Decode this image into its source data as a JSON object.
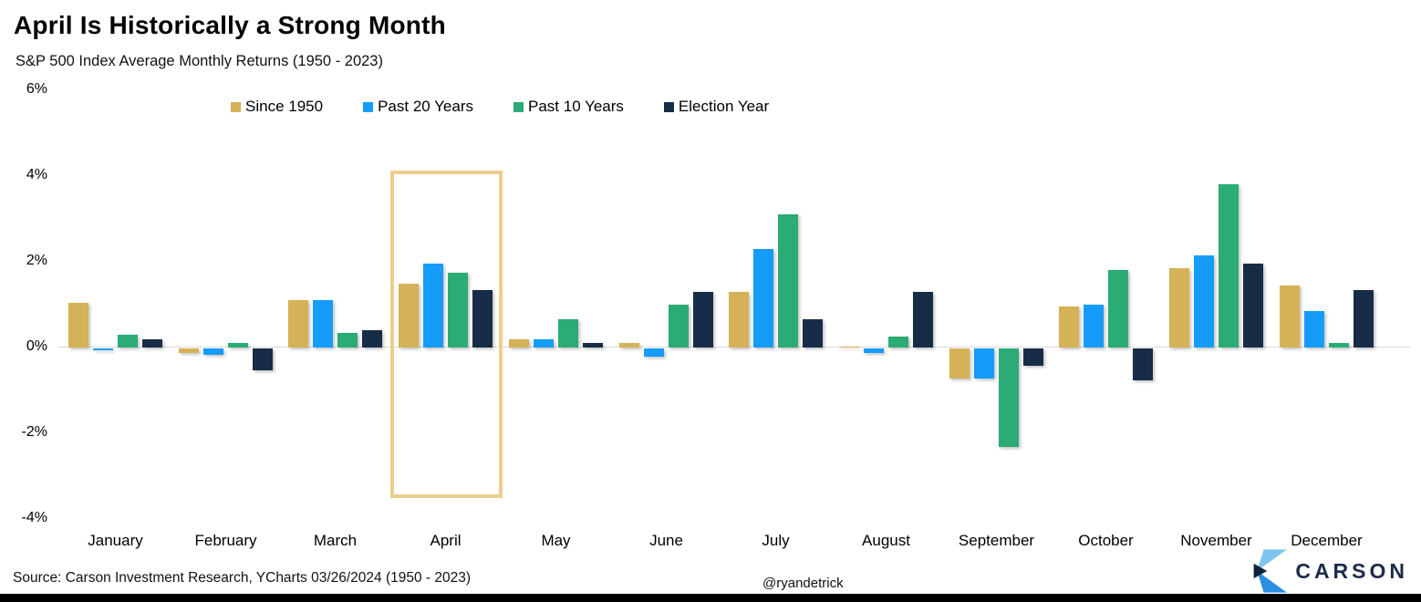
{
  "header": {
    "title": "April Is Historically a Strong Month",
    "subtitle": "S&P 500 Index Average Monthly Returns (1950 - 2023)"
  },
  "chart_data": {
    "type": "bar",
    "title": "April Is Historically a Strong Month",
    "subtitle": "S&P 500 Index Average Monthly Returns (1950 - 2023)",
    "categories": [
      "January",
      "February",
      "March",
      "April",
      "May",
      "June",
      "July",
      "August",
      "September",
      "October",
      "November",
      "December"
    ],
    "series": [
      {
        "name": "Since 1950",
        "color": "#d5b257",
        "values": [
          1.05,
          -0.1,
          1.1,
          1.5,
          0.2,
          0.1,
          1.3,
          0.0,
          -0.7,
          0.95,
          1.85,
          1.45
        ]
      },
      {
        "name": "Past 20 Years",
        "color": "#149cf8",
        "values": [
          -0.05,
          -0.15,
          1.1,
          1.95,
          0.2,
          -0.2,
          2.3,
          -0.1,
          -0.7,
          1.0,
          2.15,
          0.85
        ]
      },
      {
        "name": "Past 10 Years",
        "color": "#2bab75",
        "values": [
          0.3,
          0.1,
          0.35,
          1.75,
          0.65,
          1.0,
          3.1,
          0.25,
          -2.3,
          1.8,
          3.8,
          0.1
        ]
      },
      {
        "name": "Election Year",
        "color": "#172c47",
        "values": [
          0.2,
          -0.5,
          0.4,
          1.35,
          0.1,
          1.3,
          0.65,
          1.3,
          -0.4,
          -0.75,
          1.95,
          1.35
        ]
      }
    ],
    "ylabel": "",
    "xlabel": "",
    "ylim": [
      -4,
      6
    ],
    "yticks": [
      {
        "label": "6%",
        "value": 6
      },
      {
        "label": "4%",
        "value": 4
      },
      {
        "label": "2%",
        "value": 2
      },
      {
        "label": "0%",
        "value": 0
      },
      {
        "label": "-2%",
        "value": -2
      },
      {
        "label": "-4%",
        "value": -4
      }
    ],
    "grid": false,
    "legend_position": "top",
    "highlight": {
      "category": "April",
      "box_color": "#e9ce8c"
    }
  },
  "footer": {
    "source": "Source: Carson Investment Research, YCharts 03/26/2024 (1950 - 2023)",
    "handle": "@ryandetrick",
    "brand": "CARSON"
  },
  "colors": {
    "zero_line": "#d9d9d9",
    "brand_navy": "#1b2b4a",
    "logo_light_blue": "#7fc5f2",
    "logo_mid_blue": "#2d8fe2",
    "logo_dark_navy": "#0f2337"
  }
}
